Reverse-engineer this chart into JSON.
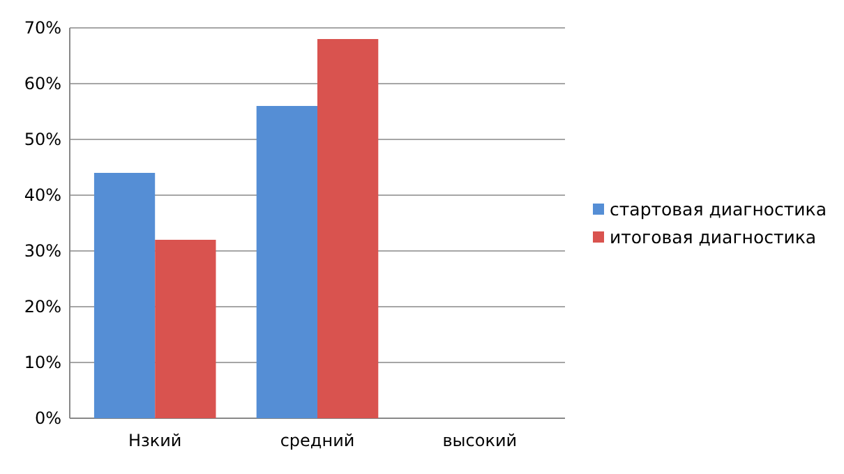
{
  "chart_data": {
    "type": "bar",
    "categories": [
      "Нзкий",
      "средний",
      "высокий"
    ],
    "series": [
      {
        "name": "стартовая диагностика",
        "color": "#558ed5",
        "values": [
          44,
          56,
          0
        ]
      },
      {
        "name": "итоговая диагностика",
        "color": "#d9534f",
        "values": [
          32,
          68,
          0
        ]
      }
    ],
    "ylim": [
      0,
      70
    ],
    "yticks": [
      {
        "value": 0,
        "label": "0%"
      },
      {
        "value": 10,
        "label": "10%"
      },
      {
        "value": 20,
        "label": "20%"
      },
      {
        "value": 30,
        "label": "30%"
      },
      {
        "value": 40,
        "label": "40%"
      },
      {
        "value": 50,
        "label": "50%"
      },
      {
        "value": 60,
        "label": "60%"
      },
      {
        "value": 70,
        "label": "70%"
      }
    ],
    "grid": "y",
    "legend": "right"
  }
}
